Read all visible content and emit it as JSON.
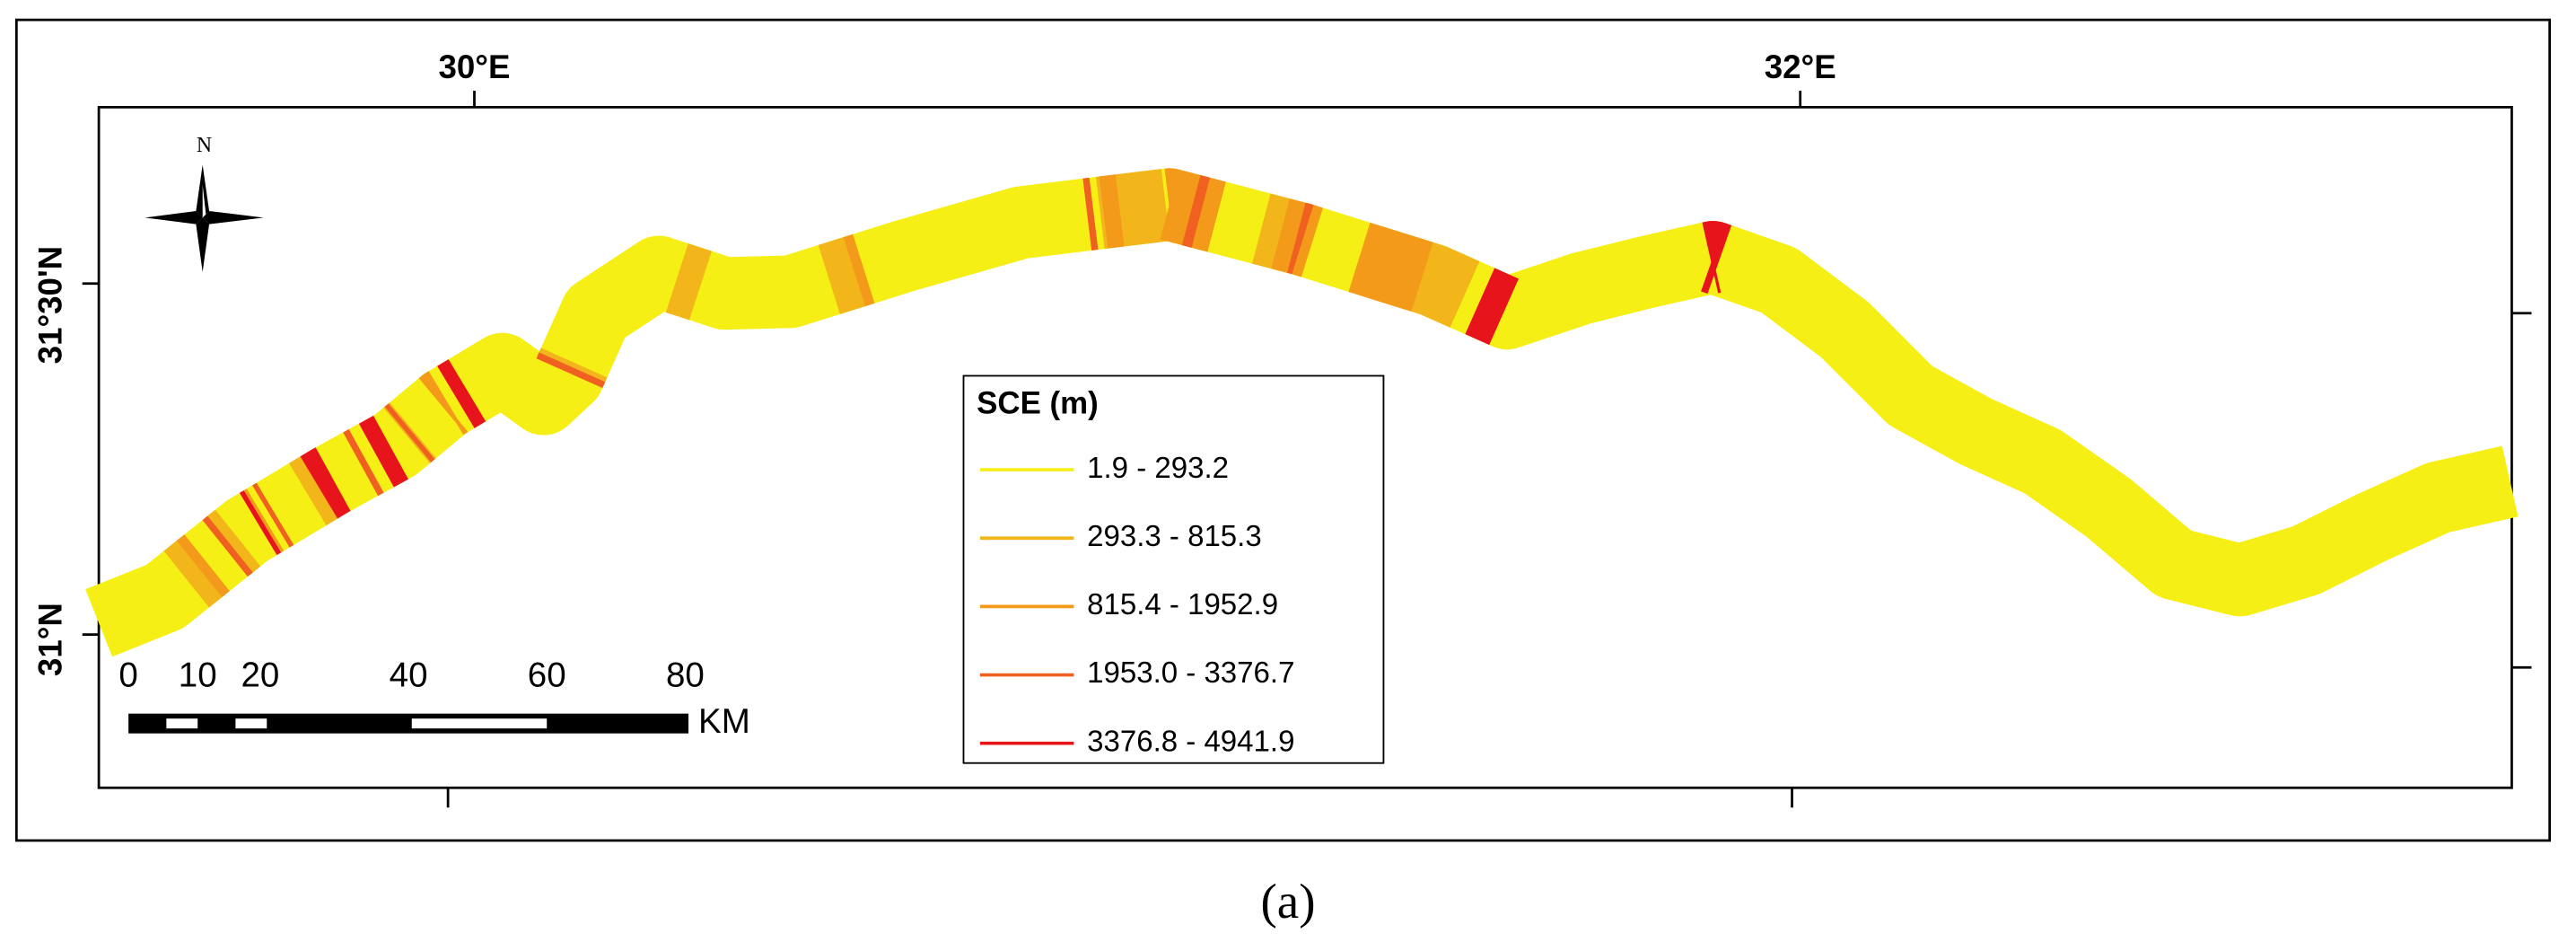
{
  "map": {
    "lon_labels": [
      "30°E",
      "32°E"
    ],
    "lat_labels": [
      "31°30'N",
      "31°N"
    ],
    "compass": "N",
    "legend": {
      "title": "SCE (m)",
      "entries": [
        {
          "label": "1.9 - 293.2",
          "color": "#f5ef16"
        },
        {
          "label": "293.3 - 815.3",
          "color": "#f2b51a"
        },
        {
          "label": "815.4 - 1952.9",
          "color": "#f39a1b"
        },
        {
          "label": "1953.0 - 3376.7",
          "color": "#f06020"
        },
        {
          "label": "3376.8 - 4941.9",
          "color": "#e8141c"
        }
      ]
    },
    "scale_bar": {
      "labels": [
        "0",
        "10",
        "20",
        "40",
        "60",
        "80"
      ],
      "unit": "KM"
    },
    "caption": "(a)"
  }
}
